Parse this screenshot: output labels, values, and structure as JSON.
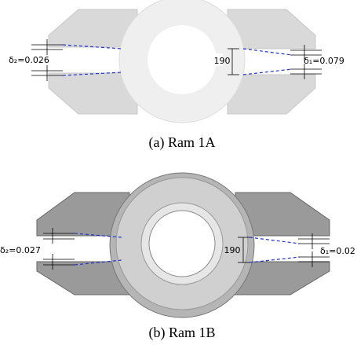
{
  "panels": [
    {
      "left_gap": "δ₂=0.026",
      "right_gap": "δ₁=0.079",
      "dimension": "190",
      "caption": "(a)  Ram  1A"
    },
    {
      "left_gap": "δ₂=0.027",
      "right_gap": "δ₁=0.02",
      "dimension": "190",
      "caption": "(b)  Ram  1B"
    }
  ]
}
